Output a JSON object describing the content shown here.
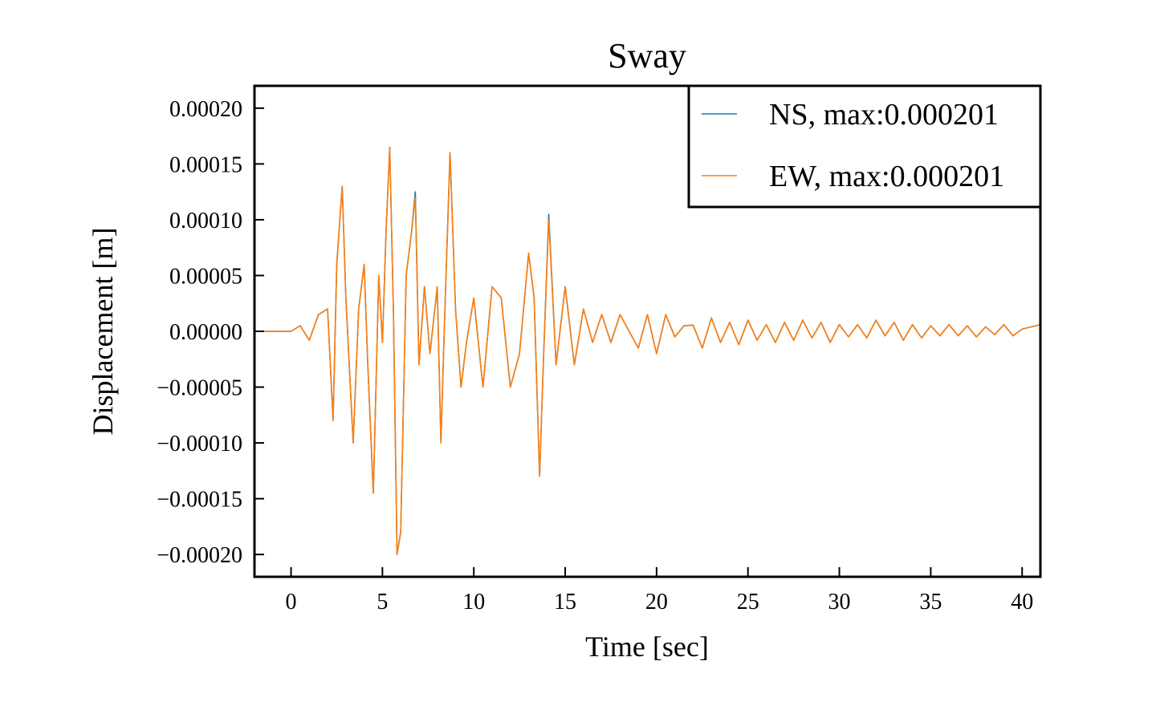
{
  "chart_data": {
    "type": "line",
    "title": "Sway",
    "xlabel": "Time [sec]",
    "ylabel": "Displacement [m]",
    "xlim": [
      -2,
      41
    ],
    "ylim": [
      -0.00022,
      0.00022
    ],
    "xticks": [
      0,
      5,
      10,
      15,
      20,
      25,
      30,
      35,
      40
    ],
    "xtick_labels": [
      "0",
      "5",
      "10",
      "15",
      "20",
      "25",
      "30",
      "35",
      "40"
    ],
    "yticks": [
      0.0002,
      0.00015,
      0.0001,
      5e-05,
      0,
      -5e-05,
      -0.0001,
      -0.00015,
      -0.0002
    ],
    "ytick_labels": [
      "0.00020",
      "0.00015",
      "0.00010",
      "0.00005",
      "0.00000",
      "−0.00005",
      "−0.00010",
      "−0.00015",
      "−0.00020"
    ],
    "grid": false,
    "legend_position": "top-right",
    "series": [
      {
        "name": "NS, max:0.000201",
        "color": "#1f77b4",
        "points": [
          [
            -2,
            0
          ],
          [
            0,
            0
          ],
          [
            0.5,
            5e-06
          ],
          [
            1,
            -8e-06
          ],
          [
            1.5,
            1.5e-05
          ],
          [
            2,
            2e-05
          ],
          [
            2.3,
            -8e-05
          ],
          [
            2.5,
            6e-05
          ],
          [
            2.8,
            0.00013
          ],
          [
            3,
            3e-05
          ],
          [
            3.4,
            -0.0001
          ],
          [
            3.7,
            2e-05
          ],
          [
            4,
            6e-05
          ],
          [
            4.2,
            -3e-05
          ],
          [
            4.5,
            -0.000145
          ],
          [
            4.8,
            5e-05
          ],
          [
            5,
            -1e-05
          ],
          [
            5.2,
            9e-05
          ],
          [
            5.4,
            0.000165
          ],
          [
            5.6,
            2e-05
          ],
          [
            5.8,
            -0.0002
          ],
          [
            6,
            -0.00018
          ],
          [
            6.3,
            5e-05
          ],
          [
            6.6,
            9e-05
          ],
          [
            6.8,
            0.000125
          ],
          [
            7,
            -3e-05
          ],
          [
            7.3,
            4e-05
          ],
          [
            7.6,
            -2e-05
          ],
          [
            8,
            4e-05
          ],
          [
            8.2,
            -0.0001
          ],
          [
            8.4,
            1e-05
          ],
          [
            8.7,
            0.00016
          ],
          [
            9,
            2e-05
          ],
          [
            9.3,
            -5e-05
          ],
          [
            9.6,
            -1e-05
          ],
          [
            10,
            3e-05
          ],
          [
            10.5,
            -5e-05
          ],
          [
            11,
            4e-05
          ],
          [
            11.5,
            3e-05
          ],
          [
            12,
            -5e-05
          ],
          [
            12.5,
            -2e-05
          ],
          [
            13,
            7e-05
          ],
          [
            13.3,
            3e-05
          ],
          [
            13.6,
            -0.00013
          ],
          [
            13.8,
            -3e-05
          ],
          [
            14.1,
            0.000105
          ],
          [
            14.5,
            -3e-05
          ],
          [
            15,
            4e-05
          ],
          [
            15.5,
            -3e-05
          ],
          [
            16,
            2e-05
          ],
          [
            16.5,
            -1e-05
          ],
          [
            17,
            1.5e-05
          ],
          [
            17.5,
            -1e-05
          ],
          [
            18,
            1.5e-05
          ],
          [
            18.5,
            0
          ],
          [
            19,
            -1.5e-05
          ],
          [
            19.5,
            1.5e-05
          ],
          [
            20,
            -2e-05
          ],
          [
            20.5,
            1.5e-05
          ],
          [
            21,
            -5e-06
          ],
          [
            21.5,
            5e-06
          ],
          [
            22,
            5.5e-06
          ],
          [
            22.5,
            -1.5e-05
          ],
          [
            23,
            1.2e-05
          ],
          [
            23.5,
            -1e-05
          ],
          [
            24,
            8e-06
          ],
          [
            24.5,
            -1.2e-05
          ],
          [
            25,
            1e-05
          ],
          [
            25.5,
            -8e-06
          ],
          [
            26,
            6e-06
          ],
          [
            26.5,
            -1e-05
          ],
          [
            27,
            8e-06
          ],
          [
            27.5,
            -8e-06
          ],
          [
            28,
            1e-05
          ],
          [
            28.5,
            -6e-06
          ],
          [
            29,
            8e-06
          ],
          [
            29.5,
            -1e-05
          ],
          [
            30,
            6e-06
          ],
          [
            30.5,
            -5e-06
          ],
          [
            31,
            6e-06
          ],
          [
            31.5,
            -6e-06
          ],
          [
            32,
            1e-05
          ],
          [
            32.5,
            -4e-06
          ],
          [
            33,
            8e-06
          ],
          [
            33.5,
            -8e-06
          ],
          [
            34,
            6e-06
          ],
          [
            34.5,
            -6e-06
          ],
          [
            35,
            5e-06
          ],
          [
            35.5,
            -4e-06
          ],
          [
            36,
            6e-06
          ],
          [
            36.5,
            -4e-06
          ],
          [
            37,
            5e-06
          ],
          [
            37.5,
            -5e-06
          ],
          [
            38,
            4e-06
          ],
          [
            38.5,
            -3e-06
          ],
          [
            39,
            6e-06
          ],
          [
            39.5,
            -4e-06
          ],
          [
            40,
            2e-06
          ],
          [
            41,
            6e-06
          ]
        ]
      },
      {
        "name": "EW, max:0.000201",
        "color": "#ff7f0e",
        "points": [
          [
            -2,
            0
          ],
          [
            0,
            0
          ],
          [
            0.5,
            5e-06
          ],
          [
            1,
            -8e-06
          ],
          [
            1.5,
            1.5e-05
          ],
          [
            2,
            2e-05
          ],
          [
            2.3,
            -8e-05
          ],
          [
            2.5,
            6e-05
          ],
          [
            2.8,
            0.00013
          ],
          [
            3,
            3e-05
          ],
          [
            3.4,
            -0.0001
          ],
          [
            3.7,
            2e-05
          ],
          [
            4,
            6e-05
          ],
          [
            4.2,
            -3e-05
          ],
          [
            4.5,
            -0.000145
          ],
          [
            4.8,
            5e-05
          ],
          [
            5,
            -1e-05
          ],
          [
            5.2,
            9e-05
          ],
          [
            5.4,
            0.000165
          ],
          [
            5.6,
            2e-05
          ],
          [
            5.8,
            -0.0002
          ],
          [
            6,
            -0.00018
          ],
          [
            6.3,
            5e-05
          ],
          [
            6.6,
            9e-05
          ],
          [
            6.8,
            0.00012
          ],
          [
            7,
            -3e-05
          ],
          [
            7.3,
            4e-05
          ],
          [
            7.6,
            -2e-05
          ],
          [
            8,
            4e-05
          ],
          [
            8.2,
            -0.0001
          ],
          [
            8.4,
            1e-05
          ],
          [
            8.7,
            0.00016
          ],
          [
            9,
            2e-05
          ],
          [
            9.3,
            -5e-05
          ],
          [
            9.6,
            -1e-05
          ],
          [
            10,
            3e-05
          ],
          [
            10.5,
            -5e-05
          ],
          [
            11,
            4e-05
          ],
          [
            11.5,
            3e-05
          ],
          [
            12,
            -5e-05
          ],
          [
            12.5,
            -2e-05
          ],
          [
            13,
            7e-05
          ],
          [
            13.3,
            3e-05
          ],
          [
            13.6,
            -0.00013
          ],
          [
            13.8,
            -3e-05
          ],
          [
            14.1,
            0.0001
          ],
          [
            14.5,
            -3e-05
          ],
          [
            15,
            4e-05
          ],
          [
            15.5,
            -3e-05
          ],
          [
            16,
            2e-05
          ],
          [
            16.5,
            -1e-05
          ],
          [
            17,
            1.5e-05
          ],
          [
            17.5,
            -1e-05
          ],
          [
            18,
            1.5e-05
          ],
          [
            18.5,
            0
          ],
          [
            19,
            -1.5e-05
          ],
          [
            19.5,
            1.5e-05
          ],
          [
            20,
            -2e-05
          ],
          [
            20.5,
            1.5e-05
          ],
          [
            21,
            -5e-06
          ],
          [
            21.5,
            5e-06
          ],
          [
            22,
            5.5e-06
          ],
          [
            22.5,
            -1.5e-05
          ],
          [
            23,
            1.2e-05
          ],
          [
            23.5,
            -1e-05
          ],
          [
            24,
            8e-06
          ],
          [
            24.5,
            -1.2e-05
          ],
          [
            25,
            1e-05
          ],
          [
            25.5,
            -8e-06
          ],
          [
            26,
            6e-06
          ],
          [
            26.5,
            -1e-05
          ],
          [
            27,
            8e-06
          ],
          [
            27.5,
            -8e-06
          ],
          [
            28,
            1e-05
          ],
          [
            28.5,
            -6e-06
          ],
          [
            29,
            8e-06
          ],
          [
            29.5,
            -1e-05
          ],
          [
            30,
            6e-06
          ],
          [
            30.5,
            -5e-06
          ],
          [
            31,
            6e-06
          ],
          [
            31.5,
            -6e-06
          ],
          [
            32,
            1e-05
          ],
          [
            32.5,
            -4e-06
          ],
          [
            33,
            8e-06
          ],
          [
            33.5,
            -8e-06
          ],
          [
            34,
            6e-06
          ],
          [
            34.5,
            -6e-06
          ],
          [
            35,
            5e-06
          ],
          [
            35.5,
            -4e-06
          ],
          [
            36,
            6e-06
          ],
          [
            36.5,
            -4e-06
          ],
          [
            37,
            5e-06
          ],
          [
            37.5,
            -5e-06
          ],
          [
            38,
            4e-06
          ],
          [
            38.5,
            -3e-06
          ],
          [
            39,
            6e-06
          ],
          [
            39.5,
            -4e-06
          ],
          [
            40,
            2e-06
          ],
          [
            41,
            6e-06
          ]
        ]
      }
    ]
  }
}
